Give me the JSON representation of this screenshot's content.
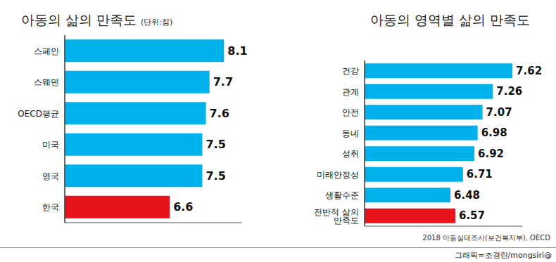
{
  "chart_data": [
    {
      "type": "bar",
      "orientation": "horizontal",
      "title": "아동의 삶의 만족도",
      "subtitle": "(단위:점)",
      "categories": [
        "스페인",
        "스웨덴",
        "OECD평균",
        "미국",
        "영국",
        "한국"
      ],
      "values": [
        8.1,
        7.7,
        7.6,
        7.5,
        7.5,
        6.6
      ],
      "colors": [
        "#00b2ec",
        "#00b2ec",
        "#00b2ec",
        "#00b2ec",
        "#00b2ec",
        "#e8141b"
      ],
      "xlim": [
        3.7,
        8.6
      ],
      "data_labels": true,
      "tick_labels": "y"
    },
    {
      "type": "bar",
      "orientation": "horizontal",
      "title": "아동의 영역별 삶의 만족도",
      "categories": [
        "건강",
        "관계",
        "안전",
        "동네",
        "성취",
        "미래안정성",
        "생활수준",
        "전반적 삶의 만족도"
      ],
      "values": [
        7.62,
        7.26,
        7.07,
        6.98,
        6.92,
        6.71,
        6.48,
        6.57
      ],
      "colors": [
        "#00b2ec",
        "#00b2ec",
        "#00b2ec",
        "#00b2ec",
        "#00b2ec",
        "#00b2ec",
        "#00b2ec",
        "#e8141b"
      ],
      "xlim": [
        4.9,
        7.8
      ],
      "data_labels": true,
      "tick_labels": "y",
      "source": "2018 아동실태조사(보건복지부), OECD"
    }
  ],
  "credit": "그래픽=조경란/mongsiri@"
}
